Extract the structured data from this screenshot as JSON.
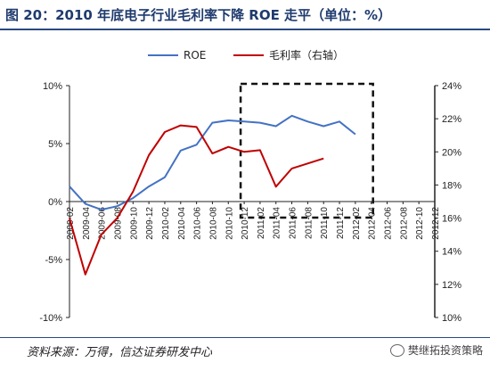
{
  "header": {
    "title": "图 20：2010 年底电子行业毛利率下降 ROE 走平（单位：%）"
  },
  "footer": {
    "source": "资料来源：万得，信达证券研发中心",
    "brand": "樊继拓投资策略"
  },
  "chart_data": {
    "type": "line",
    "categories": [
      "2009-02",
      "2009-04",
      "2009-06",
      "2009-08",
      "2009-10",
      "2009-12",
      "2010-02",
      "2010-04",
      "2010-06",
      "2010-08",
      "2010-10",
      "2010-12",
      "2011-02",
      "2011-04",
      "2011-06",
      "2011-08",
      "2011-10",
      "2011-12",
      "2012-02",
      "2012-04",
      "2012-06",
      "2012-08",
      "2012-10",
      "2012-12"
    ],
    "x_tick_labels": [
      "2009-02",
      "2009-04",
      "2009-06",
      "2009-08",
      "2009-10",
      "2009-12",
      "2010-02",
      "2010-04",
      "2010-06",
      "2010-08",
      "2010-10",
      "2010-12",
      "2011-02",
      "2011-04",
      "2011-06",
      "2011-08",
      "2011-10",
      "2011-12",
      "2012-02",
      "2012-04",
      "2012-06",
      "2012-08",
      "2012-10",
      "2012-12"
    ],
    "series": [
      {
        "name": "ROE",
        "axis": "left",
        "color": "#4472c4",
        "values": [
          1.3,
          -0.2,
          -0.7,
          -0.4,
          0.3,
          1.3,
          2.1,
          4.4,
          4.9,
          6.8,
          7.0,
          6.9,
          6.8,
          6.5,
          7.4,
          6.9,
          6.5,
          6.9,
          5.8,
          null,
          null,
          null,
          null,
          null
        ]
      },
      {
        "name": "毛利率（右轴）",
        "axis": "right",
        "color": "#c00000",
        "values": [
          16.0,
          12.6,
          15.0,
          16.0,
          17.6,
          19.8,
          21.2,
          21.6,
          21.5,
          19.9,
          20.3,
          20.0,
          20.1,
          17.9,
          19.0,
          19.3,
          19.6,
          null,
          null,
          null,
          null,
          null,
          null,
          null
        ]
      }
    ],
    "y_left": {
      "min": -10,
      "max": 10,
      "ticks": [
        "10%",
        "5%",
        "0%",
        "-5%",
        "-10%"
      ],
      "tick_values": [
        10,
        5,
        0,
        -5,
        -10
      ]
    },
    "y_right": {
      "min": 10,
      "max": 24,
      "ticks": [
        "24%",
        "22%",
        "20%",
        "18%",
        "16%",
        "14%",
        "12%",
        "10%"
      ],
      "tick_values": [
        24,
        22,
        20,
        18,
        16,
        14,
        12,
        10
      ]
    },
    "legend_position": "top-center",
    "grid": false,
    "highlight_box": {
      "from_category": "2010-12",
      "to_category": "2012-04",
      "style": "dashed"
    }
  }
}
